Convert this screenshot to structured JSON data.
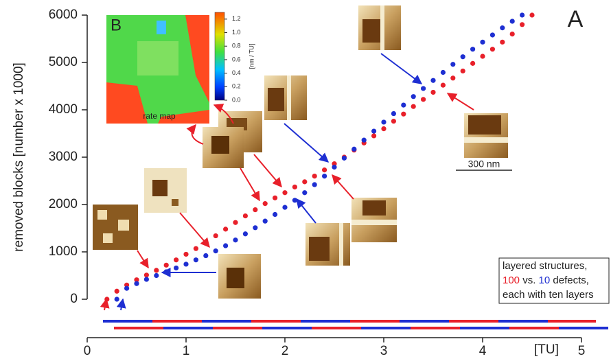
{
  "chart_data": {
    "type": "scatter",
    "panel_label": "A",
    "y_label": "removed blocks  [number x 1000]",
    "x_unit": "[TU]",
    "xlim": [
      0,
      5
    ],
    "xticks": [
      0,
      1,
      2,
      3,
      4,
      5
    ],
    "ylim": [
      0,
      6000
    ],
    "yticks": [
      0,
      1000,
      2000,
      3000,
      4000,
      5000,
      6000
    ],
    "scale_bar": "300 nm",
    "legend_lines": [
      "layered structures,",
      " vs. ",
      " defects,",
      "each with ten layers"
    ],
    "series": [
      {
        "name": "100",
        "color": "#e8202a",
        "x": [
          0.2,
          0.3,
          0.4,
          0.5,
          0.6,
          0.7,
          0.8,
          0.9,
          1.0,
          1.1,
          1.2,
          1.3,
          1.4,
          1.5,
          1.6,
          1.7,
          1.8,
          1.9,
          2.0,
          2.1,
          2.2,
          2.3,
          2.4,
          2.5,
          2.6,
          2.7,
          2.8,
          2.9,
          3.0,
          3.1,
          3.2,
          3.3,
          3.4,
          3.5,
          3.6,
          3.7,
          3.8,
          3.9,
          4.0,
          4.1,
          4.2,
          4.3,
          4.4,
          4.5
        ],
        "values": [
          0,
          170,
          300,
          410,
          510,
          610,
          720,
          830,
          950,
          1070,
          1200,
          1340,
          1480,
          1620,
          1760,
          1890,
          2020,
          2140,
          2250,
          2370,
          2480,
          2600,
          2730,
          2860,
          3000,
          3150,
          3300,
          3450,
          3600,
          3760,
          3910,
          4070,
          4220,
          4370,
          4520,
          4670,
          4820,
          4980,
          5130,
          5280,
          5430,
          5600,
          5800,
          6000
        ]
      },
      {
        "name": "10",
        "color": "#1e2fd2",
        "x": [
          0.3,
          0.4,
          0.5,
          0.6,
          0.7,
          0.8,
          0.9,
          1.0,
          1.1,
          1.2,
          1.3,
          1.4,
          1.5,
          1.6,
          1.7,
          1.8,
          1.9,
          2.0,
          2.1,
          2.2,
          2.3,
          2.4,
          2.5,
          2.6,
          2.7,
          2.8,
          2.9,
          3.0,
          3.1,
          3.2,
          3.3,
          3.4,
          3.5,
          3.6,
          3.7,
          3.8,
          3.9,
          4.0,
          4.1,
          4.2,
          4.3,
          4.4
        ],
        "values": [
          0,
          230,
          330,
          420,
          500,
          580,
          660,
          740,
          830,
          920,
          1020,
          1130,
          1250,
          1380,
          1510,
          1650,
          1790,
          1940,
          2090,
          2250,
          2420,
          2600,
          2790,
          2980,
          3170,
          3360,
          3550,
          3740,
          3920,
          4100,
          4280,
          4450,
          4620,
          4790,
          4960,
          5120,
          5280,
          5430,
          5580,
          5730,
          5870,
          6000
        ]
      }
    ]
  },
  "inset": {
    "label": "B",
    "caption": "rate map",
    "colorbar_unit": "[nm / TU]",
    "colorbar_lim": [
      0,
      1.3
    ],
    "colorbar_ticks": [
      {
        "value": 0,
        "label": "0.0"
      },
      {
        "value": 0.2,
        "label": "0.2"
      },
      {
        "value": 0.4,
        "label": "0.4"
      },
      {
        "value": 0.6,
        "label": "0.6"
      },
      {
        "value": 0.8,
        "label": "0.8"
      },
      {
        "value": 1,
        "label": "1.0"
      },
      {
        "value": 1.2,
        "label": "1.2"
      }
    ]
  }
}
